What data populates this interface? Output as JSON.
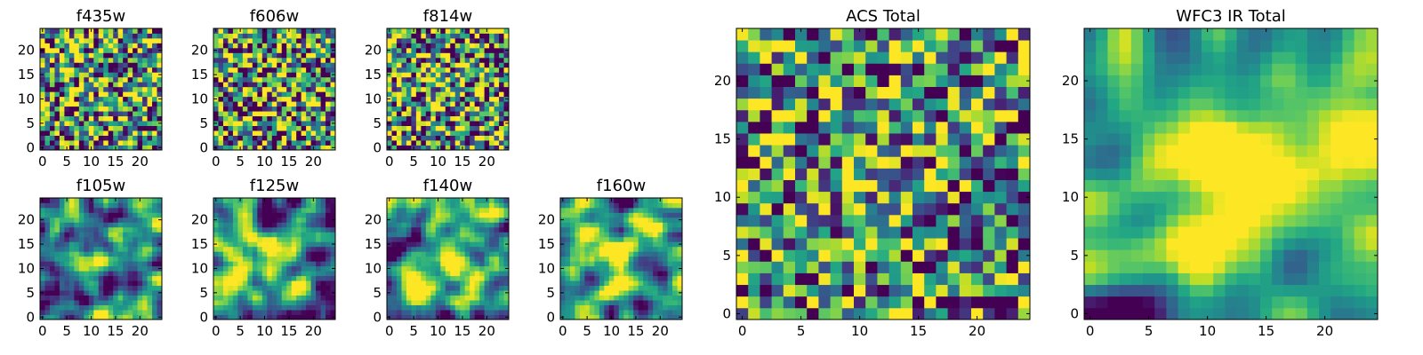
{
  "chart_data": [
    {
      "type": "heatmap",
      "title": "f435w",
      "xticks": [
        0,
        5,
        10,
        15,
        20
      ],
      "yticks": [
        0,
        5,
        10,
        15,
        20
      ],
      "xlim": [
        -0.5,
        24.5
      ],
      "ylim": [
        -0.5,
        24.5
      ],
      "grid_size": [
        25,
        25
      ],
      "colormap": "viridis",
      "seed": 11,
      "center": [
        12,
        7
      ],
      "center_boost": 0.12,
      "smooth": 0,
      "noise": 0.45,
      "value_range": [
        0,
        1
      ]
    },
    {
      "type": "heatmap",
      "title": "f606w",
      "xticks": [
        0,
        5,
        10,
        15,
        20
      ],
      "yticks": [
        0,
        5,
        10,
        15,
        20
      ],
      "xlim": [
        -0.5,
        24.5
      ],
      "ylim": [
        -0.5,
        24.5
      ],
      "grid_size": [
        25,
        25
      ],
      "colormap": "viridis",
      "seed": 23,
      "center": [
        13,
        12
      ],
      "center_boost": 0.25,
      "smooth": 0,
      "noise": 0.45,
      "value_range": [
        0,
        1
      ]
    },
    {
      "type": "heatmap",
      "title": "f814w",
      "xticks": [
        0,
        5,
        10,
        15,
        20
      ],
      "yticks": [
        0,
        5,
        10,
        15,
        20
      ],
      "xlim": [
        -0.5,
        24.5
      ],
      "ylim": [
        -0.5,
        24.5
      ],
      "grid_size": [
        25,
        25
      ],
      "colormap": "viridis",
      "seed": 37,
      "center": [
        12,
        12
      ],
      "center_boost": 0.2,
      "smooth": 0,
      "noise": 0.45,
      "value_range": [
        0,
        1
      ]
    },
    {
      "type": "heatmap",
      "title": "f105w",
      "xticks": [
        0,
        5,
        10,
        15,
        20
      ],
      "yticks": [
        0,
        5,
        10,
        15,
        20
      ],
      "xlim": [
        -0.5,
        24.5
      ],
      "ylim": [
        -0.5,
        24.5
      ],
      "grid_size": [
        25,
        25
      ],
      "colormap": "viridis",
      "seed": 41,
      "center": [
        12,
        12
      ],
      "center_boost": 0.45,
      "smooth": 2,
      "noise": 0.5,
      "value_range": [
        0,
        1
      ]
    },
    {
      "type": "heatmap",
      "title": "f125w",
      "xticks": [
        0,
        5,
        10,
        15,
        20
      ],
      "yticks": [
        0,
        5,
        10,
        15,
        20
      ],
      "xlim": [
        -0.5,
        24.5
      ],
      "ylim": [
        -0.5,
        24.5
      ],
      "grid_size": [
        25,
        25
      ],
      "colormap": "viridis",
      "seed": 53,
      "center": [
        12,
        12
      ],
      "center_boost": 0.35,
      "smooth": 2,
      "noise": 0.5,
      "value_range": [
        0,
        1
      ]
    },
    {
      "type": "heatmap",
      "title": "f140w",
      "xticks": [
        0,
        5,
        10,
        15,
        20
      ],
      "yticks": [
        0,
        5,
        10,
        15,
        20
      ],
      "xlim": [
        -0.5,
        24.5
      ],
      "ylim": [
        -0.5,
        24.5
      ],
      "grid_size": [
        25,
        25
      ],
      "colormap": "viridis",
      "seed": 67,
      "center": [
        12,
        12
      ],
      "center_boost": 0.35,
      "smooth": 2,
      "noise": 0.5,
      "value_range": [
        0,
        1
      ]
    },
    {
      "type": "heatmap",
      "title": "f160w",
      "xticks": [
        0,
        5,
        10,
        15,
        20
      ],
      "yticks": [
        0,
        5,
        10,
        15,
        20
      ],
      "xlim": [
        -0.5,
        24.5
      ],
      "ylim": [
        -0.5,
        24.5
      ],
      "grid_size": [
        25,
        25
      ],
      "colormap": "viridis",
      "seed": 71,
      "center": [
        13,
        13
      ],
      "center_boost": 0.45,
      "smooth": 2,
      "noise": 0.5,
      "value_range": [
        0,
        1
      ]
    },
    {
      "type": "heatmap",
      "title": "ACS Total",
      "xticks": [
        0,
        5,
        10,
        15,
        20
      ],
      "yticks": [
        0,
        5,
        10,
        15,
        20
      ],
      "xlim": [
        -0.5,
        24.5
      ],
      "ylim": [
        -0.5,
        24.5
      ],
      "grid_size": [
        25,
        25
      ],
      "colormap": "viridis",
      "seed": 83,
      "center": [
        12,
        11
      ],
      "center_boost": 0.3,
      "smooth": 0,
      "noise": 0.35,
      "value_range": [
        0,
        1
      ]
    },
    {
      "type": "heatmap",
      "title": "WFC3 IR Total",
      "xticks": [
        0,
        5,
        10,
        15,
        20
      ],
      "yticks": [
        0,
        5,
        10,
        15,
        20
      ],
      "xlim": [
        -0.5,
        24.5
      ],
      "ylim": [
        -0.5,
        24.5
      ],
      "grid_size": [
        25,
        25
      ],
      "colormap": "viridis",
      "seed": 97,
      "center": [
        12,
        13
      ],
      "center_boost": 0.5,
      "smooth": 3,
      "noise": 0.45,
      "value_range": [
        0,
        1
      ]
    }
  ]
}
